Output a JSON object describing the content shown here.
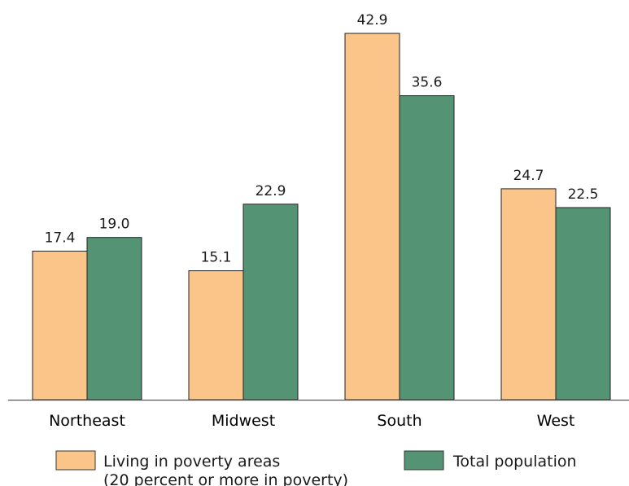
{
  "chart_data": {
    "type": "bar",
    "title": "",
    "xlabel": "",
    "ylabel": "",
    "categories": [
      "Northeast",
      "Midwest",
      "South",
      "West"
    ],
    "series": [
      {
        "name": "Living in poverty areas",
        "name_line2": "(20 percent or more in poverty)",
        "color": "#FBC489",
        "values": [
          17.4,
          15.1,
          42.9,
          24.7
        ],
        "labels": [
          "17.4",
          "15.1",
          "42.9",
          "24.7"
        ]
      },
      {
        "name": "Total population",
        "color": "#549474",
        "values": [
          19.0,
          22.9,
          35.6,
          22.5
        ],
        "labels": [
          "19.0",
          "22.9",
          "35.6",
          "22.5"
        ]
      }
    ],
    "ylim": [
      0,
      46
    ],
    "grid": false,
    "legend_position": "bottom"
  }
}
